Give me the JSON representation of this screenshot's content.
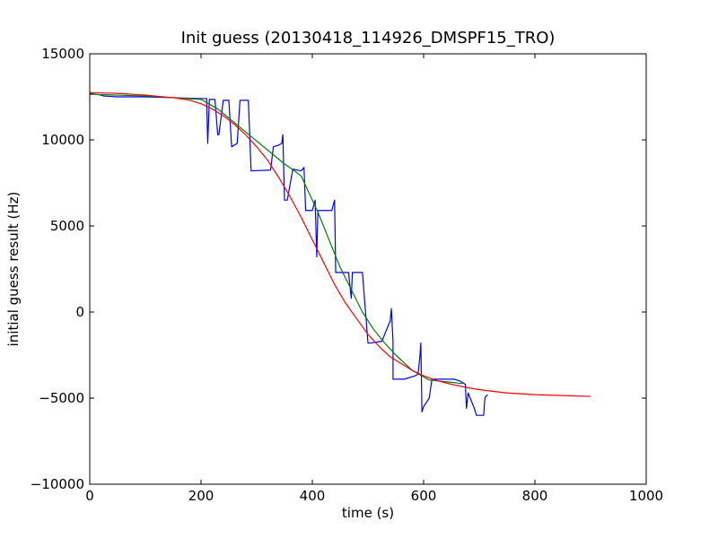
{
  "chart_data": {
    "type": "line",
    "title": "Init guess (20130418_114926_DMSPF15_TRO)",
    "xlabel": "time (s)",
    "ylabel": "initial guess result (Hz)",
    "xlim": [
      0,
      1000
    ],
    "ylim": [
      -10000,
      15000
    ],
    "xticks": [
      0,
      200,
      400,
      600,
      800,
      1000
    ],
    "xtick_labels": [
      "0",
      "200",
      "400",
      "600",
      "800",
      "1000"
    ],
    "yticks": [
      -10000,
      -5000,
      0,
      5000,
      10000,
      15000
    ],
    "ytick_labels": [
      "−10000",
      "−5000",
      "0",
      "5000",
      "10000",
      "15000"
    ],
    "grid": false,
    "legend": "none",
    "series": [
      {
        "color": "#0000ff",
        "x": [
          0,
          20,
          25,
          50,
          100,
          150,
          200,
          210,
          212,
          215,
          225,
          230,
          232,
          240,
          245,
          250,
          255,
          265,
          270,
          285,
          290,
          325,
          330,
          340,
          345,
          347,
          350,
          355,
          365,
          380,
          385,
          388,
          390,
          400,
          405,
          408,
          410,
          412,
          435,
          440,
          442,
          445,
          450,
          465,
          470,
          472,
          475,
          490,
          500,
          505,
          525,
          540,
          542,
          545,
          545,
          550,
          565,
          585,
          590,
          593,
          595,
          597,
          600,
          610,
          615,
          630,
          655,
          665,
          675,
          677,
          680,
          690,
          695,
          700,
          708,
          710,
          712,
          715
        ],
        "y": [
          12700,
          12600,
          12550,
          12500,
          12500,
          12450,
          12400,
          12400,
          9800,
          12350,
          12350,
          10300,
          10300,
          12300,
          12300,
          12300,
          9600,
          9800,
          12300,
          12300,
          8200,
          8250,
          9600,
          9700,
          9800,
          10300,
          6500,
          6500,
          8300,
          8200,
          8400,
          5900,
          5900,
          5900,
          6500,
          3200,
          5900,
          5900,
          5900,
          6500,
          2300,
          2300,
          2300,
          2300,
          800,
          2300,
          2300,
          2300,
          -1800,
          -1800,
          -1700,
          -500,
          200,
          -1700,
          -3900,
          -3900,
          -3900,
          -3700,
          -3600,
          -2700,
          -1800,
          -5800,
          -5500,
          -5000,
          -3900,
          -3900,
          -3900,
          -4000,
          -4200,
          -5600,
          -4700,
          -5500,
          -6000,
          -6000,
          -6000,
          -5000,
          -4900,
          -4800
        ]
      },
      {
        "color": "#008000",
        "x": [
          0,
          50,
          100,
          150,
          200,
          230,
          260,
          290,
          320,
          350,
          370,
          380,
          390,
          410,
          420,
          430,
          450,
          470,
          490,
          510,
          530,
          550,
          580,
          610,
          640,
          670
        ],
        "y": [
          12650,
          12600,
          12550,
          12450,
          12350,
          11800,
          11000,
          10200,
          9400,
          8600,
          8150,
          7900,
          7200,
          5800,
          5000,
          4200,
          2600,
          1300,
          0,
          -1000,
          -1800,
          -2500,
          -3400,
          -3950,
          -4050,
          -4150
        ]
      },
      {
        "color": "#ff0000",
        "x": [
          0,
          50,
          100,
          150,
          180,
          200,
          220,
          240,
          260,
          280,
          300,
          320,
          340,
          360,
          380,
          400,
          420,
          440,
          460,
          480,
          500,
          520,
          540,
          560,
          580,
          600,
          620,
          650,
          680,
          710,
          750,
          800,
          850,
          900
        ],
        "y": [
          12750,
          12700,
          12600,
          12450,
          12300,
          12100,
          11800,
          11400,
          10900,
          10300,
          9600,
          8800,
          7800,
          6700,
          5500,
          4200,
          2900,
          1600,
          500,
          -400,
          -1300,
          -2000,
          -2600,
          -3000,
          -3400,
          -3700,
          -3950,
          -4200,
          -4400,
          -4550,
          -4700,
          -4800,
          -4850,
          -4900
        ]
      }
    ]
  }
}
